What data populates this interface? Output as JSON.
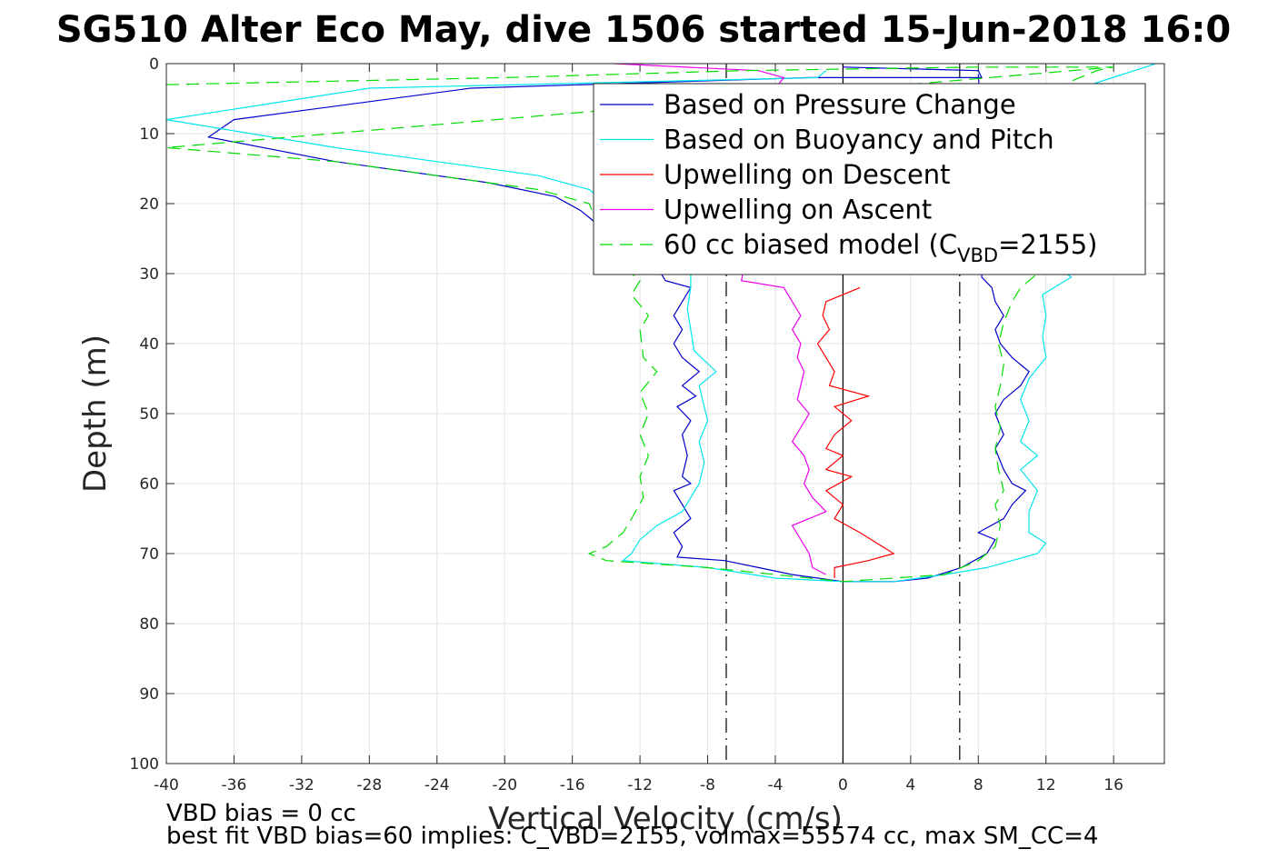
{
  "chart_data": {
    "type": "line",
    "title": "SG510 Alter Eco May, dive 1506 started 15-Jun-2018 16:0",
    "xlabel": "Vertical Velocity (cm/s)",
    "ylabel": "Depth (m)",
    "xlim": [
      -40,
      19
    ],
    "ylim": [
      0,
      100
    ],
    "y_reversed": true,
    "grid": true,
    "xticks": [
      "-40",
      "-36",
      "-32",
      "-28",
      "-24",
      "-20",
      "-16",
      "-12",
      "-8",
      "-4",
      "0",
      "4",
      "8",
      "12",
      "16"
    ],
    "yticks": [
      "0",
      "10",
      "20",
      "30",
      "40",
      "50",
      "60",
      "70",
      "80",
      "90",
      "100"
    ],
    "reference_lines": [
      {
        "x": 0,
        "style": "solid",
        "color": "#000000"
      },
      {
        "x": -6.9,
        "style": "dashdot",
        "color": "#000000"
      },
      {
        "x": 6.9,
        "style": "dashdot",
        "color": "#000000"
      }
    ],
    "legend_position": "top-right",
    "series": [
      {
        "name": "Based on Pressure Change",
        "color": "#0000cc",
        "style": "solid",
        "points": [
          [
            0,
            0.5
          ],
          [
            8,
            1
          ],
          [
            8.2,
            2
          ],
          [
            -2,
            2
          ],
          [
            -22,
            3.5
          ],
          [
            -36,
            8
          ],
          [
            -37.5,
            10.5
          ],
          [
            -30,
            14
          ],
          [
            -21,
            17
          ],
          [
            -17,
            19
          ],
          [
            -15.5,
            21
          ],
          [
            -15,
            22
          ],
          [
            -13,
            26
          ],
          [
            -11,
            29
          ],
          [
            -10.5,
            31
          ],
          [
            -9,
            32
          ],
          [
            -9.5,
            34
          ],
          [
            -10,
            36
          ],
          [
            -9.5,
            38
          ],
          [
            -10,
            40
          ],
          [
            -9.5,
            42
          ],
          [
            -8.5,
            44
          ],
          [
            -9.5,
            46
          ],
          [
            -8.7,
            47.5
          ],
          [
            -9.8,
            49
          ],
          [
            -9,
            51
          ],
          [
            -9.5,
            53
          ],
          [
            -9.2,
            56
          ],
          [
            -9.5,
            59
          ],
          [
            -9,
            60
          ],
          [
            -10,
            61
          ],
          [
            -9.5,
            63
          ],
          [
            -9,
            65
          ],
          [
            -10,
            67
          ],
          [
            -9.5,
            69
          ],
          [
            -9.8,
            70.5
          ],
          [
            -7,
            71
          ],
          [
            -5,
            72
          ],
          [
            -3,
            73
          ],
          [
            0,
            74
          ],
          [
            3,
            74
          ],
          [
            5,
            73.5
          ],
          [
            7,
            72
          ],
          [
            8.5,
            70
          ],
          [
            9,
            68
          ],
          [
            8,
            67
          ],
          [
            9.5,
            65
          ],
          [
            10,
            63
          ],
          [
            10.8,
            61
          ],
          [
            10,
            60
          ],
          [
            9.5,
            58
          ],
          [
            9,
            55
          ],
          [
            9.5,
            53
          ],
          [
            9,
            50
          ],
          [
            9.5,
            48
          ],
          [
            10.5,
            46
          ],
          [
            11,
            44
          ],
          [
            10,
            42
          ],
          [
            9.3,
            40
          ],
          [
            9,
            38
          ],
          [
            9.5,
            36
          ],
          [
            9,
            34
          ],
          [
            8.8,
            32
          ],
          [
            8.2,
            30.5
          ],
          [
            8.3,
            25
          ],
          [
            8.1,
            20
          ],
          [
            8.3,
            15
          ],
          [
            8.2,
            10
          ],
          [
            8.1,
            5
          ],
          [
            8,
            1.5
          ]
        ]
      },
      {
        "name": "Based on Buoyancy and Pitch",
        "color": "#00e5ee",
        "style": "solid",
        "points": [
          [
            -1,
            1
          ],
          [
            -1.5,
            2
          ],
          [
            -28,
            3.5
          ],
          [
            -40,
            8
          ],
          [
            -35,
            10
          ],
          [
            -30,
            12
          ],
          [
            -24,
            14
          ],
          [
            -18,
            16
          ],
          [
            -15,
            18
          ],
          [
            -14,
            20
          ],
          [
            -12,
            25
          ],
          [
            -9,
            29
          ],
          [
            -9,
            32
          ],
          [
            -9.2,
            35
          ],
          [
            -9,
            38
          ],
          [
            -8.8,
            41
          ],
          [
            -7.5,
            44
          ],
          [
            -8.5,
            46
          ],
          [
            -8.3,
            48
          ],
          [
            -8,
            51
          ],
          [
            -8.5,
            54
          ],
          [
            -8.2,
            57
          ],
          [
            -8.5,
            60
          ],
          [
            -9,
            62
          ],
          [
            -9.5,
            64
          ],
          [
            -11,
            66
          ],
          [
            -12,
            68
          ],
          [
            -12.5,
            70
          ],
          [
            -13,
            71
          ],
          [
            -8,
            72
          ],
          [
            -4,
            73.5
          ],
          [
            0,
            74
          ],
          [
            3,
            74
          ],
          [
            6,
            73
          ],
          [
            8.5,
            72
          ],
          [
            10,
            71
          ],
          [
            11.5,
            70
          ],
          [
            12,
            68.5
          ],
          [
            11,
            67
          ],
          [
            11,
            64
          ],
          [
            11.5,
            61
          ],
          [
            10.5,
            58
          ],
          [
            11.5,
            56
          ],
          [
            10.5,
            54
          ],
          [
            11,
            51
          ],
          [
            10.5,
            48
          ],
          [
            11,
            45
          ],
          [
            12,
            42
          ],
          [
            11.8,
            39
          ],
          [
            12,
            36
          ],
          [
            11.8,
            33
          ],
          [
            13.5,
            30.5
          ],
          [
            12,
            28
          ],
          [
            12.2,
            24
          ],
          [
            12,
            18
          ],
          [
            12.5,
            12
          ],
          [
            13,
            8
          ],
          [
            13.5,
            4
          ],
          [
            14,
            3.5
          ],
          [
            18.5,
            0
          ]
        ]
      },
      {
        "name": "Upwelling on Descent",
        "color": "#ff0000",
        "style": "solid",
        "points": [
          [
            1,
            32
          ],
          [
            -1,
            34
          ],
          [
            -1.2,
            36
          ],
          [
            -0.8,
            38
          ],
          [
            -1.5,
            40
          ],
          [
            -1,
            42
          ],
          [
            -0.5,
            44
          ],
          [
            -0.8,
            46
          ],
          [
            1.5,
            47.5
          ],
          [
            -0.5,
            49
          ],
          [
            0.5,
            51
          ],
          [
            -0.5,
            53
          ],
          [
            -1,
            55
          ],
          [
            0,
            56
          ],
          [
            -1,
            58
          ],
          [
            0.5,
            59
          ],
          [
            -1,
            61
          ],
          [
            0,
            63
          ],
          [
            -0.5,
            65
          ],
          [
            1,
            67
          ],
          [
            2,
            68.5
          ],
          [
            3,
            70
          ],
          [
            1.5,
            71
          ],
          [
            -0.5,
            72
          ],
          [
            -0.5,
            73.5
          ]
        ]
      },
      {
        "name": "Upwelling on Ascent",
        "color": "#ee00ee",
        "style": "solid",
        "points": [
          [
            -13.5,
            0
          ],
          [
            -5,
            1
          ],
          [
            -3.5,
            2
          ],
          [
            -4,
            3.5
          ],
          [
            -6,
            31
          ],
          [
            -3.5,
            32
          ],
          [
            -3,
            34
          ],
          [
            -2.5,
            36
          ],
          [
            -3,
            38
          ],
          [
            -2.5,
            40
          ],
          [
            -2.7,
            42
          ],
          [
            -2.3,
            44
          ],
          [
            -2.5,
            46
          ],
          [
            -2.7,
            48
          ],
          [
            -2,
            50
          ],
          [
            -2.5,
            52
          ],
          [
            -3,
            54
          ],
          [
            -2.3,
            56
          ],
          [
            -2,
            58
          ],
          [
            -2.3,
            60
          ],
          [
            -1.8,
            62
          ],
          [
            -1,
            64
          ],
          [
            -3,
            66
          ],
          [
            -2.5,
            68
          ],
          [
            -2,
            70
          ],
          [
            -1.8,
            72
          ],
          [
            -1,
            73
          ]
        ]
      },
      {
        "name": "60 cc biased model (C_VBD=2155)",
        "color": "#00dd00",
        "style": "dashed",
        "points": [
          [
            -40,
            3
          ],
          [
            -20,
            2
          ],
          [
            -6,
            1
          ],
          [
            8,
            0.5
          ],
          [
            16,
            0.5
          ],
          [
            -40,
            12
          ],
          [
            -30,
            14
          ],
          [
            -24,
            16
          ],
          [
            -18,
            18
          ],
          [
            -15,
            20
          ],
          [
            -14,
            26
          ],
          [
            -13,
            29
          ],
          [
            -12,
            31
          ],
          [
            -12.5,
            33
          ],
          [
            -11.5,
            36
          ],
          [
            -12,
            38
          ],
          [
            -11.8,
            42
          ],
          [
            -11,
            44
          ],
          [
            -12,
            47
          ],
          [
            -11.5,
            50
          ],
          [
            -12,
            53
          ],
          [
            -11.5,
            56
          ],
          [
            -12,
            59
          ],
          [
            -11.8,
            62
          ],
          [
            -12.5,
            65
          ],
          [
            -13,
            67
          ],
          [
            -14,
            69
          ],
          [
            -15,
            70
          ],
          [
            -14,
            71
          ],
          [
            -8,
            72
          ],
          [
            -4,
            73
          ],
          [
            0,
            74
          ],
          [
            3,
            73.5
          ],
          [
            6,
            73
          ],
          [
            8,
            71
          ],
          [
            9,
            69
          ],
          [
            9.3,
            66
          ],
          [
            9,
            63
          ],
          [
            9.5,
            61
          ],
          [
            9.2,
            58
          ],
          [
            9,
            55
          ],
          [
            9.3,
            52
          ],
          [
            9,
            49
          ],
          [
            9.3,
            46
          ],
          [
            9.5,
            43
          ],
          [
            9.2,
            40
          ],
          [
            9.5,
            37
          ],
          [
            10,
            34
          ],
          [
            10.5,
            32
          ],
          [
            11.5,
            30
          ],
          [
            11.5,
            25
          ],
          [
            11.5,
            20
          ],
          [
            12,
            15
          ],
          [
            12,
            10
          ],
          [
            12.5,
            5
          ],
          [
            13,
            3
          ],
          [
            15,
            1
          ],
          [
            16,
            0.5
          ]
        ]
      }
    ],
    "legend": [
      {
        "text": "Based on Pressure Change",
        "color": "#0000cc",
        "style": "solid"
      },
      {
        "text": "Based on Buoyancy and Pitch",
        "color": "#00e5ee",
        "style": "solid"
      },
      {
        "text": "Upwelling on Descent",
        "color": "#ff0000",
        "style": "solid"
      },
      {
        "text": "Upwelling on Ascent",
        "color": "#ee00ee",
        "style": "solid"
      },
      {
        "text": "60 cc biased model (C",
        "sub": "VBD",
        "after": "=2155)",
        "color": "#00dd00",
        "style": "dashed"
      }
    ],
    "annotations": [
      "VBD bias = 0 cc",
      "best fit VBD bias=60 implies: C_VBD=2155, volmax=55574 cc, max SM_CC=4"
    ]
  }
}
